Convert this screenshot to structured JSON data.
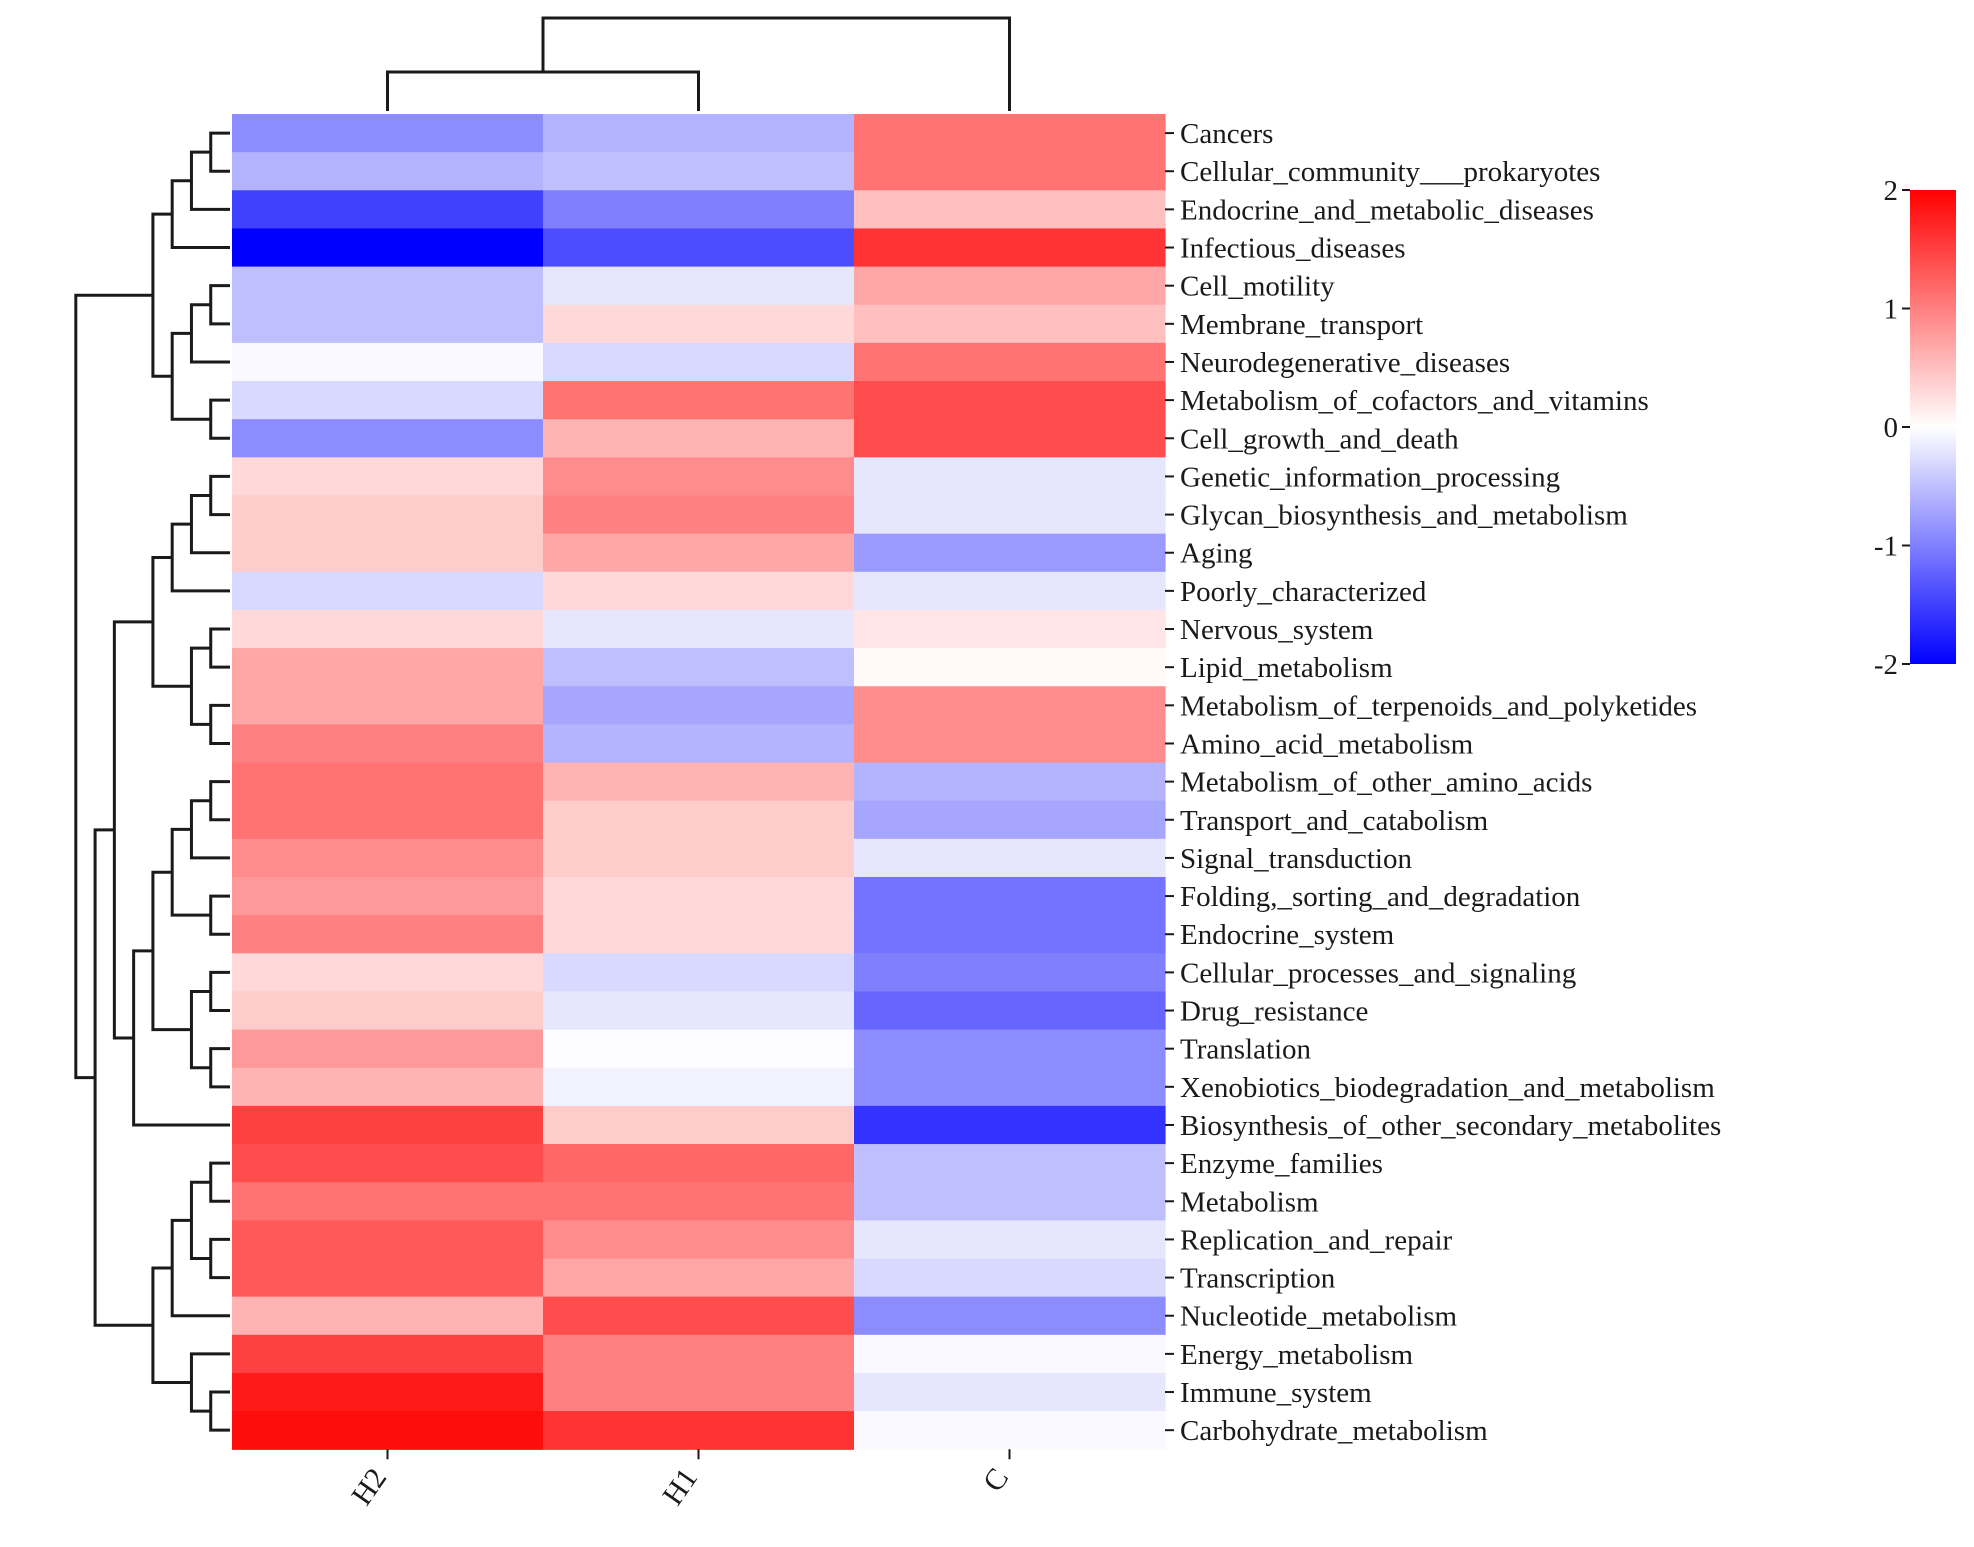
{
  "chart_data": {
    "type": "heatmap",
    "title": "",
    "columns": [
      "H2",
      "H1",
      "C"
    ],
    "rows": [
      "Cancers",
      "Cellular_community___prokaryotes",
      "Endocrine_and_metabolic_diseases",
      "Infectious_diseases",
      "Cell_motility",
      "Membrane_transport",
      "Neurodegenerative_diseases",
      "Metabolism_of_cofactors_and_vitamins",
      "Cell_growth_and_death",
      "Genetic_information_processing",
      "Glycan_biosynthesis_and_metabolism",
      "Aging",
      "Poorly_characterized",
      "Nervous_system",
      "Lipid_metabolism",
      "Metabolism_of_terpenoids_and_polyketides",
      "Amino_acid_metabolism",
      "Metabolism_of_other_amino_acids",
      "Transport_and_catabolism",
      "Signal_transduction",
      "Folding,_sorting_and_degradation",
      "Endocrine_system",
      "Cellular_processes_and_signaling",
      "Drug_resistance",
      "Translation",
      "Xenobiotics_biodegradation_and_metabolism",
      "Biosynthesis_of_other_secondary_metabolites",
      "Enzyme_families",
      "Metabolism",
      "Replication_and_repair",
      "Transcription",
      "Nucleotide_metabolism",
      "Energy_metabolism",
      "Immune_system",
      "Carbohydrate_metabolism"
    ],
    "values": [
      [
        -0.9,
        -0.6,
        1.1
      ],
      [
        -0.6,
        -0.5,
        1.1
      ],
      [
        -1.5,
        -1.0,
        0.5
      ],
      [
        -2.0,
        -1.4,
        1.6
      ],
      [
        -0.5,
        -0.2,
        0.7
      ],
      [
        -0.5,
        0.3,
        0.5
      ],
      [
        -0.05,
        -0.3,
        1.1
      ],
      [
        -0.3,
        1.1,
        1.4
      ],
      [
        -0.9,
        0.6,
        1.4
      ],
      [
        0.3,
        0.9,
        -0.2
      ],
      [
        0.4,
        1.0,
        -0.2
      ],
      [
        0.4,
        0.7,
        -0.8
      ],
      [
        -0.3,
        0.3,
        -0.2
      ],
      [
        0.3,
        -0.2,
        0.2
      ],
      [
        0.7,
        -0.5,
        0.05
      ],
      [
        0.7,
        -0.7,
        0.9
      ],
      [
        1.0,
        -0.6,
        0.9
      ],
      [
        1.1,
        0.6,
        -0.6
      ],
      [
        1.1,
        0.4,
        -0.7
      ],
      [
        0.9,
        0.4,
        -0.2
      ],
      [
        0.8,
        0.3,
        -1.1
      ],
      [
        1.0,
        0.3,
        -1.1
      ],
      [
        0.3,
        -0.3,
        -1.0
      ],
      [
        0.4,
        -0.2,
        -1.2
      ],
      [
        0.8,
        -0.02,
        -0.9
      ],
      [
        0.6,
        -0.1,
        -0.9
      ],
      [
        1.5,
        0.4,
        -1.6
      ],
      [
        1.4,
        1.2,
        -0.5
      ],
      [
        1.1,
        1.1,
        -0.5
      ],
      [
        1.3,
        0.9,
        -0.2
      ],
      [
        1.3,
        0.7,
        -0.3
      ],
      [
        0.6,
        1.4,
        -0.9
      ],
      [
        1.5,
        1.0,
        -0.05
      ],
      [
        1.8,
        1.0,
        -0.2
      ],
      [
        1.9,
        1.6,
        -0.05
      ]
    ],
    "colorbar": {
      "min": -2,
      "max": 2,
      "ticks": [
        "2",
        "1",
        "0",
        "-1",
        "-2"
      ],
      "low_color": "#0000ff",
      "mid_color": "#ffffff",
      "high_color": "#ff0000"
    },
    "col_dendrogram": [
      [
        1,
        0
      ],
      [
        2,
        3
      ]
    ],
    "row_dendrogram": [
      [
        0,
        1
      ],
      [
        35,
        2
      ],
      [
        36,
        3
      ],
      [
        4,
        5
      ],
      [
        38,
        6
      ],
      [
        7,
        8
      ],
      [
        39,
        40
      ],
      [
        37,
        41
      ],
      [
        9,
        10
      ],
      [
        43,
        11
      ],
      [
        44,
        12
      ],
      [
        13,
        14
      ],
      [
        15,
        16
      ],
      [
        46,
        47
      ],
      [
        45,
        48
      ],
      [
        17,
        18
      ],
      [
        50,
        19
      ],
      [
        20,
        21
      ],
      [
        51,
        52
      ],
      [
        22,
        23
      ],
      [
        24,
        25
      ],
      [
        54,
        55
      ],
      [
        53,
        56
      ],
      [
        57,
        26
      ],
      [
        49,
        58
      ],
      [
        27,
        28
      ],
      [
        29,
        30
      ],
      [
        60,
        61
      ],
      [
        62,
        31
      ],
      [
        33,
        34
      ],
      [
        32,
        64
      ],
      [
        63,
        65
      ],
      [
        59,
        66
      ],
      [
        42,
        67
      ]
    ]
  }
}
